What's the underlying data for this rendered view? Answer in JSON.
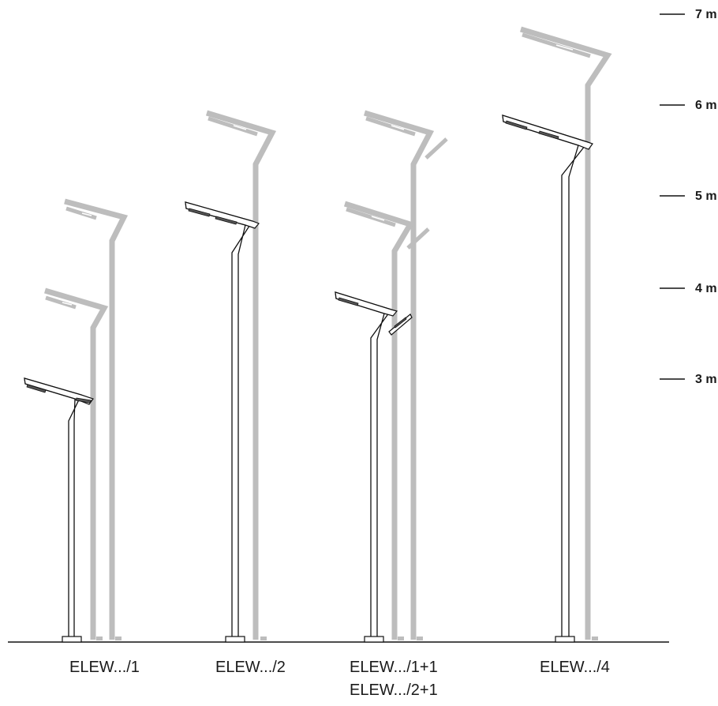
{
  "scale": {
    "marks": [
      {
        "value": 7,
        "label": "7 m"
      },
      {
        "value": 6,
        "label": "6 m"
      },
      {
        "value": 5,
        "label": "5 m"
      },
      {
        "value": 4,
        "label": "4 m"
      },
      {
        "value": 3,
        "label": "3 m"
      }
    ]
  },
  "poles": [
    {
      "label": "ELEW.../1",
      "height_m": 3.0,
      "ghost_heights_m": [
        4.0,
        5.0
      ]
    },
    {
      "label": "ELEW.../2",
      "height_m": 5.0,
      "ghost_heights_m": [
        6.0
      ]
    },
    {
      "label": "ELEW.../1+1",
      "label_line2": "ELEW.../2+1",
      "height_m": 4.0,
      "ghost_heights_m": [
        5.0,
        6.0
      ]
    },
    {
      "label": "ELEW.../4",
      "height_m": 6.0,
      "ghost_heights_m": [
        7.0
      ]
    }
  ],
  "colors": {
    "pole_outline": "#111111",
    "ghost": "#bdbdbd",
    "ground": "#111111"
  }
}
